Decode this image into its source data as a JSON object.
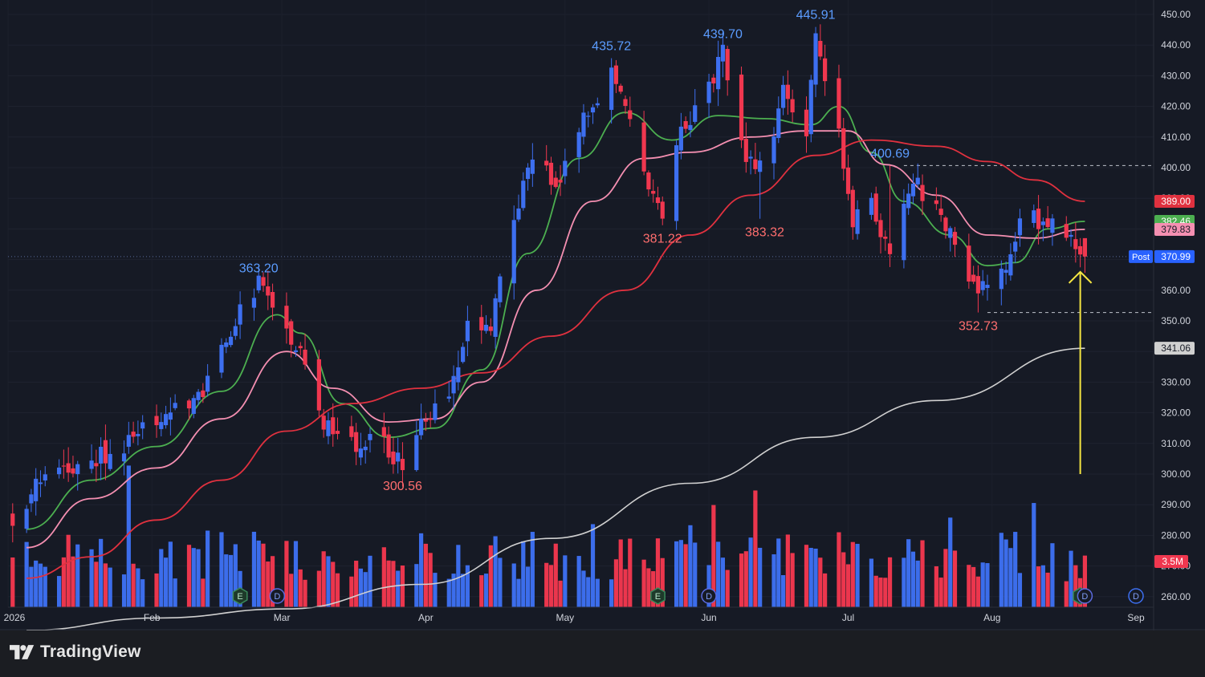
{
  "branding": {
    "logo_text": "TradingView"
  },
  "colors": {
    "background": "#161a25",
    "up": "#3d6ff0",
    "down": "#f0374f",
    "ma_fast": "#4caf50",
    "ma_mid": "#f48fb1",
    "ma_slow": "#e0313f",
    "ma_long": "#d0d0d0",
    "annotation_arrow": "#f5e642",
    "axis_text": "#d1d4dc"
  },
  "chart_data": {
    "type": "candlestick",
    "x_axis": {
      "labels": [
        {
          "text": "2026",
          "date": "2026-01-01"
        },
        {
          "text": "Feb",
          "date": "2026-02-01"
        },
        {
          "text": "Mar",
          "date": "2026-03-01"
        },
        {
          "text": "Apr",
          "date": "2026-04-01"
        },
        {
          "text": "May",
          "date": "2026-05-01"
        },
        {
          "text": "Jun",
          "date": "2026-06-01"
        },
        {
          "text": "Jul",
          "date": "2026-07-01"
        },
        {
          "text": "Aug",
          "date": "2026-08-01"
        },
        {
          "text": "Sep",
          "date": "2026-09-01"
        }
      ]
    },
    "y_axis": {
      "min": 255,
      "max": 452,
      "ticks": [
        450,
        440,
        430,
        420,
        410,
        400,
        390,
        380,
        370,
        360,
        350,
        340,
        330,
        320,
        310,
        300,
        290,
        280,
        270,
        260
      ],
      "tick_labels": [
        "450.00",
        "440.00",
        "430.00",
        "420.00",
        "410.00",
        "400.00",
        "390.00",
        "380.00",
        "370.00",
        "360.00",
        "350.00",
        "340.00",
        "330.00",
        "320.00",
        "310.00",
        "300.00",
        "290.00",
        "280.00",
        "270.00",
        "260.00"
      ]
    },
    "series_waypoints": [
      {
        "date": "2026-01-02",
        "close": 286
      },
      {
        "date": "2026-01-09",
        "close": 299
      },
      {
        "date": "2026-01-16",
        "close": 303
      },
      {
        "date": "2026-01-23",
        "close": 307
      },
      {
        "date": "2026-01-30",
        "close": 314
      },
      {
        "date": "2026-02-06",
        "close": 320
      },
      {
        "date": "2026-02-13",
        "close": 330
      },
      {
        "date": "2026-02-18",
        "close": 348
      },
      {
        "date": "2026-02-24",
        "close": 363
      },
      {
        "date": "2026-02-28",
        "close": 356
      },
      {
        "date": "2026-03-05",
        "close": 338
      },
      {
        "date": "2026-03-10",
        "close": 318
      },
      {
        "date": "2026-03-16",
        "close": 310
      },
      {
        "date": "2026-03-22",
        "close": 312
      },
      {
        "date": "2026-03-27",
        "close": 303
      },
      {
        "date": "2026-03-31",
        "close": 318
      },
      {
        "date": "2026-04-06",
        "close": 327
      },
      {
        "date": "2026-04-10",
        "close": 347
      },
      {
        "date": "2026-04-15",
        "close": 348
      },
      {
        "date": "2026-04-18",
        "close": 372
      },
      {
        "date": "2026-04-23",
        "close": 402
      },
      {
        "date": "2026-04-29",
        "close": 395
      },
      {
        "date": "2026-05-04",
        "close": 412
      },
      {
        "date": "2026-05-11",
        "close": 432
      },
      {
        "date": "2026-05-16",
        "close": 412
      },
      {
        "date": "2026-05-20",
        "close": 388
      },
      {
        "date": "2026-05-22",
        "close": 384
      },
      {
        "date": "2026-05-26",
        "close": 412
      },
      {
        "date": "2026-05-30",
        "close": 420
      },
      {
        "date": "2026-06-04",
        "close": 437
      },
      {
        "date": "2026-06-09",
        "close": 402
      },
      {
        "date": "2026-06-13",
        "close": 398
      },
      {
        "date": "2026-06-17",
        "close": 424
      },
      {
        "date": "2026-06-22",
        "close": 410
      },
      {
        "date": "2026-06-24",
        "close": 443
      },
      {
        "date": "2026-06-29",
        "close": 412
      },
      {
        "date": "2026-07-02",
        "close": 384
      },
      {
        "date": "2026-07-06",
        "close": 388
      },
      {
        "date": "2026-07-10",
        "close": 372
      },
      {
        "date": "2026-07-15",
        "close": 396
      },
      {
        "date": "2026-07-20",
        "close": 387
      },
      {
        "date": "2026-07-24",
        "close": 375
      },
      {
        "date": "2026-07-29",
        "close": 358
      },
      {
        "date": "2026-07-31",
        "close": 362
      },
      {
        "date": "2026-08-04",
        "close": 370
      },
      {
        "date": "2026-08-08",
        "close": 385
      },
      {
        "date": "2026-08-12",
        "close": 382
      },
      {
        "date": "2026-08-16",
        "close": 381
      },
      {
        "date": "2026-08-20",
        "close": 373
      },
      {
        "date": "2026-08-21",
        "close": 371
      }
    ],
    "moving_averages": [
      {
        "name": "fast",
        "color": "#4caf50",
        "last_value": "382.46",
        "points": [
          {
            "date": "2026-01-05",
            "value": 282
          },
          {
            "date": "2026-01-19",
            "value": 298
          },
          {
            "date": "2026-02-02",
            "value": 309
          },
          {
            "date": "2026-02-16",
            "value": 327
          },
          {
            "date": "2026-02-28",
            "value": 352
          },
          {
            "date": "2026-03-05",
            "value": 346
          },
          {
            "date": "2026-03-14",
            "value": 323
          },
          {
            "date": "2026-03-24",
            "value": 312
          },
          {
            "date": "2026-04-03",
            "value": 315
          },
          {
            "date": "2026-04-13",
            "value": 334
          },
          {
            "date": "2026-04-23",
            "value": 372
          },
          {
            "date": "2026-05-04",
            "value": 403
          },
          {
            "date": "2026-05-14",
            "value": 418
          },
          {
            "date": "2026-05-24",
            "value": 409
          },
          {
            "date": "2026-06-03",
            "value": 417
          },
          {
            "date": "2026-06-13",
            "value": 416
          },
          {
            "date": "2026-06-23",
            "value": 414
          },
          {
            "date": "2026-06-29",
            "value": 420
          },
          {
            "date": "2026-07-06",
            "value": 405
          },
          {
            "date": "2026-07-13",
            "value": 389
          },
          {
            "date": "2026-07-23",
            "value": 378
          },
          {
            "date": "2026-07-31",
            "value": 368
          },
          {
            "date": "2026-08-06",
            "value": 369
          },
          {
            "date": "2026-08-13",
            "value": 380
          },
          {
            "date": "2026-08-21",
            "value": 382.46
          }
        ]
      },
      {
        "name": "mid",
        "color": "#f48fb1",
        "last_value": "379.83",
        "points": [
          {
            "date": "2026-01-05",
            "value": 276
          },
          {
            "date": "2026-01-19",
            "value": 292
          },
          {
            "date": "2026-02-02",
            "value": 302
          },
          {
            "date": "2026-02-16",
            "value": 318
          },
          {
            "date": "2026-03-02",
            "value": 340
          },
          {
            "date": "2026-03-12",
            "value": 328
          },
          {
            "date": "2026-03-24",
            "value": 317
          },
          {
            "date": "2026-04-03",
            "value": 318
          },
          {
            "date": "2026-04-13",
            "value": 330
          },
          {
            "date": "2026-04-25",
            "value": 360
          },
          {
            "date": "2026-05-07",
            "value": 389
          },
          {
            "date": "2026-05-18",
            "value": 403
          },
          {
            "date": "2026-05-28",
            "value": 405
          },
          {
            "date": "2026-06-10",
            "value": 410
          },
          {
            "date": "2026-06-22",
            "value": 412
          },
          {
            "date": "2026-07-01",
            "value": 412
          },
          {
            "date": "2026-07-09",
            "value": 401
          },
          {
            "date": "2026-07-20",
            "value": 391
          },
          {
            "date": "2026-07-31",
            "value": 378
          },
          {
            "date": "2026-08-10",
            "value": 377
          },
          {
            "date": "2026-08-21",
            "value": 379.83
          }
        ]
      },
      {
        "name": "slow",
        "color": "#e0313f",
        "last_value": "389.00",
        "points": [
          {
            "date": "2026-01-05",
            "value": 266
          },
          {
            "date": "2026-01-19",
            "value": 273
          },
          {
            "date": "2026-02-02",
            "value": 285
          },
          {
            "date": "2026-02-16",
            "value": 298
          },
          {
            "date": "2026-03-02",
            "value": 314
          },
          {
            "date": "2026-03-16",
            "value": 323
          },
          {
            "date": "2026-03-31",
            "value": 328
          },
          {
            "date": "2026-04-13",
            "value": 333
          },
          {
            "date": "2026-04-28",
            "value": 345
          },
          {
            "date": "2026-05-14",
            "value": 360
          },
          {
            "date": "2026-05-28",
            "value": 378
          },
          {
            "date": "2026-06-10",
            "value": 391
          },
          {
            "date": "2026-06-24",
            "value": 404
          },
          {
            "date": "2026-07-06",
            "value": 409
          },
          {
            "date": "2026-07-20",
            "value": 407
          },
          {
            "date": "2026-07-31",
            "value": 402
          },
          {
            "date": "2026-08-10",
            "value": 396
          },
          {
            "date": "2026-08-21",
            "value": 389
          }
        ]
      },
      {
        "name": "long",
        "color": "#d0d0d0",
        "last_value": "341.06",
        "points": [
          {
            "date": "2026-01-05",
            "value": 249
          },
          {
            "date": "2026-02-02",
            "value": 253
          },
          {
            "date": "2026-03-02",
            "value": 256
          },
          {
            "date": "2026-03-31",
            "value": 264
          },
          {
            "date": "2026-04-28",
            "value": 279
          },
          {
            "date": "2026-05-28",
            "value": 297
          },
          {
            "date": "2026-06-24",
            "value": 312
          },
          {
            "date": "2026-07-20",
            "value": 324
          },
          {
            "date": "2026-08-21",
            "value": 341.06
          }
        ]
      }
    ],
    "price_annotations": [
      {
        "text": "363.20",
        "date": "2026-02-24",
        "value": 363.2,
        "kind": "high"
      },
      {
        "text": "300.56",
        "date": "2026-03-27",
        "value": 300.56,
        "kind": "low"
      },
      {
        "text": "435.72",
        "date": "2026-05-11",
        "value": 435.72,
        "kind": "high"
      },
      {
        "text": "381.22",
        "date": "2026-05-22",
        "value": 381.22,
        "kind": "low"
      },
      {
        "text": "439.70",
        "date": "2026-06-04",
        "value": 439.7,
        "kind": "high"
      },
      {
        "text": "383.32",
        "date": "2026-06-13",
        "value": 383.32,
        "kind": "low"
      },
      {
        "text": "445.91",
        "date": "2026-06-24",
        "value": 445.91,
        "kind": "high"
      },
      {
        "text": "400.69",
        "date": "2026-07-10",
        "value": 400.69,
        "kind": "high"
      },
      {
        "text": "352.73",
        "date": "2026-07-29",
        "value": 352.73,
        "kind": "low"
      }
    ],
    "reference_lines": [
      {
        "value": 400.69,
        "from_date": "2026-07-13",
        "style": "dashed"
      },
      {
        "value": 352.73,
        "from_date": "2026-07-31",
        "style": "dashed"
      },
      {
        "value": 370.99,
        "from_date": "2026-01-01",
        "style": "dotted"
      }
    ],
    "axis_badges": [
      {
        "text": "389.00",
        "value": 389.0,
        "bg": "#e0313f"
      },
      {
        "text": "382.46",
        "value": 382.46,
        "bg": "#4caf50"
      },
      {
        "text": "379.83",
        "value": 379.83,
        "bg": "#f48fb1"
      },
      {
        "text": "341.06",
        "value": 341.06,
        "bg": "#d0d0d0"
      }
    ],
    "post_badge": {
      "tag": "Post",
      "text": "370.99",
      "value": 370.99
    },
    "volume": {
      "last_label": "3.5M",
      "max_bar_millions": 7.5
    },
    "events": [
      {
        "type": "earnings",
        "label": "E",
        "date": "2026-02-20"
      },
      {
        "type": "dividend",
        "label": "D",
        "date": "2026-02-28"
      },
      {
        "type": "earnings",
        "label": "E",
        "date": "2026-05-21"
      },
      {
        "type": "dividend",
        "label": "D",
        "date": "2026-06-01"
      },
      {
        "type": "earnings",
        "label": "E",
        "date": "2026-08-20"
      },
      {
        "type": "dividend",
        "label": "D",
        "date": "2026-08-21"
      },
      {
        "type": "dividend",
        "label": "D",
        "date": "2026-09-01"
      }
    ],
    "arrow_annotation": {
      "date": "2026-08-20",
      "from_value": 300,
      "to_value": 366
    }
  }
}
